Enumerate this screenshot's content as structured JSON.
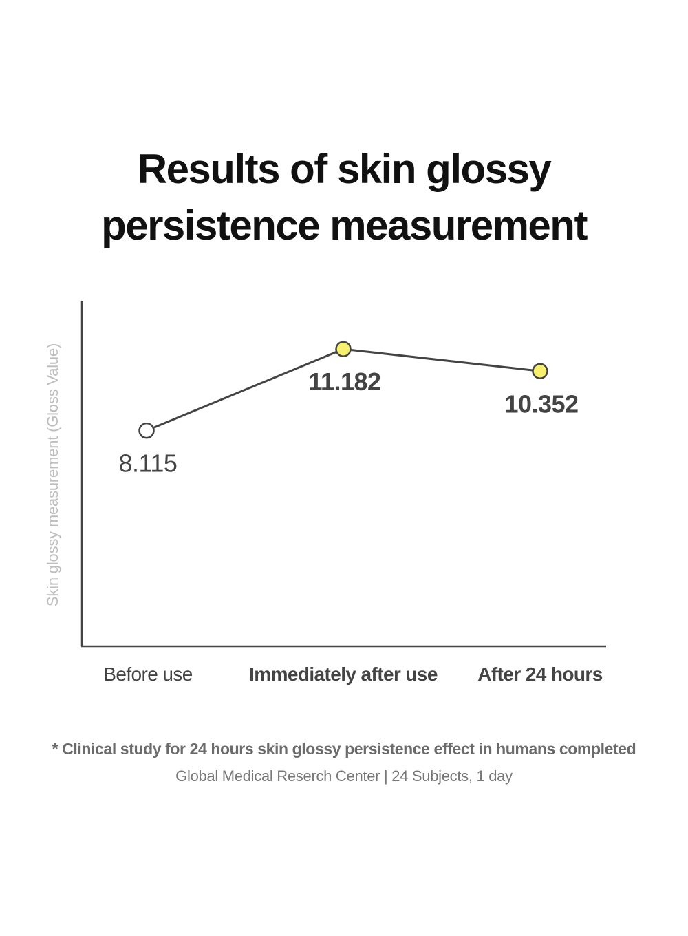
{
  "title": {
    "line1": "Results of skin glossy",
    "line2": "persistence measurement"
  },
  "chart_data": {
    "type": "line",
    "title": "Results of skin glossy persistence measurement",
    "ylabel": "Skin glossy measurement (Gloss Value)",
    "xlabel": "",
    "categories": [
      "Before use",
      "Immediately after use",
      "After 24 hours"
    ],
    "series": [
      {
        "values": [
          8.115,
          11.182,
          10.352
        ]
      }
    ],
    "value_labels": [
      "8.115",
      "11.182",
      "10.352"
    ],
    "ylim": [
      0,
      13
    ],
    "grid": false,
    "marker_colors": [
      "#ffffff",
      "#f7ef6e",
      "#f7ef6e"
    ],
    "line_color": "#444444",
    "axis_color": "#444444"
  },
  "footnote": "* Clinical study for 24 hours skin glossy persistence effect in humans completed",
  "source": "Global Medical Reserch Center | 24 Subjects, 1 day"
}
